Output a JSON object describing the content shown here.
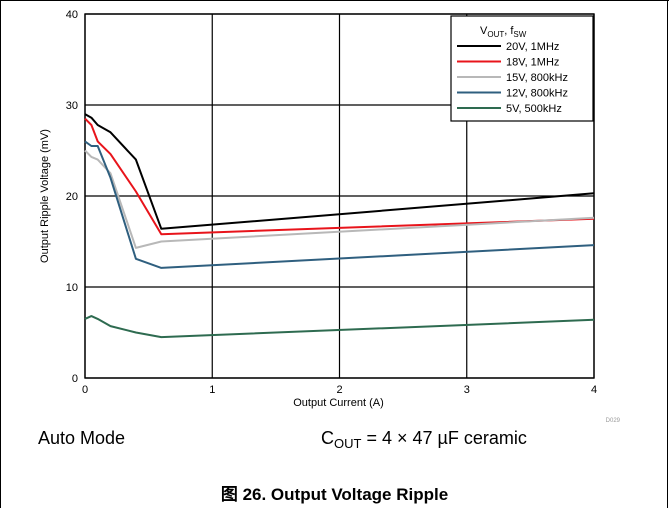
{
  "chart_data": {
    "type": "line",
    "title": "",
    "xlabel": "Output Current (A)",
    "ylabel": "Output Ripple Voltage (mV)",
    "xlim": [
      0,
      4
    ],
    "ylim": [
      0,
      40
    ],
    "x_ticks": [
      "0",
      "1",
      "2",
      "3",
      "4"
    ],
    "y_ticks": [
      "0",
      "10",
      "20",
      "30",
      "40"
    ],
    "grid": true,
    "legend_position": "top-right",
    "legend_title": {
      "main": "V",
      "main_sub": "OUT",
      "sep": ", f",
      "sep_sub": "SW"
    },
    "series": [
      {
        "name": "20V, 1MHz",
        "color": "#000000",
        "x": [
          0,
          0.05,
          0.1,
          0.2,
          0.4,
          0.6,
          4.0
        ],
        "y": [
          29.0,
          28.6,
          27.8,
          27.0,
          24.0,
          16.4,
          20.3
        ]
      },
      {
        "name": "18V, 1MHz",
        "color": "#e8141b",
        "x": [
          0,
          0.05,
          0.1,
          0.2,
          0.4,
          0.6,
          4.0
        ],
        "y": [
          28.5,
          27.8,
          26.0,
          24.6,
          20.5,
          15.8,
          17.5
        ]
      },
      {
        "name": "15V, 800kHz",
        "color": "#b8b8b8",
        "x": [
          0,
          0.05,
          0.1,
          0.2,
          0.4,
          0.6,
          4.0
        ],
        "y": [
          25.0,
          24.3,
          24.0,
          22.5,
          14.3,
          15.0,
          17.6
        ]
      },
      {
        "name": "12V, 800kHz",
        "color": "#2f5f7f",
        "x": [
          0,
          0.05,
          0.1,
          0.2,
          0.4,
          0.6,
          4.0
        ],
        "y": [
          26.0,
          25.5,
          25.5,
          22.0,
          13.1,
          12.1,
          14.6
        ]
      },
      {
        "name": "5V, 500kHz",
        "color": "#2e6b50",
        "x": [
          0,
          0.05,
          0.1,
          0.2,
          0.4,
          0.6,
          4.0
        ],
        "y": [
          6.5,
          6.8,
          6.5,
          5.7,
          5.0,
          4.5,
          6.4
        ]
      }
    ],
    "corner_code": "D029"
  },
  "captions": {
    "mode": "Auto Mode",
    "cout_symbol": "C",
    "cout_sub": "OUT",
    "cout_value": " = 4 × 47 µF ceramic"
  },
  "figure_title": "图 26. Output Voltage Ripple"
}
